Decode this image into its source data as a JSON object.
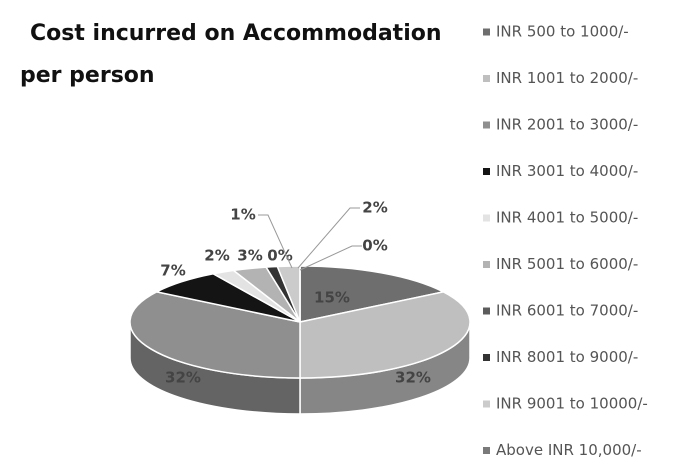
{
  "chart_data": {
    "type": "pie",
    "title": "Cost incurred on Accommodation per person",
    "categories": [
      "INR 500 to 1000/-",
      "INR 1001 to 2000/-",
      "INR 2001 to 3000/-",
      "INR 3001 to 4000/-",
      "INR 4001 to 5000/-",
      "INR 5001 to 6000/-",
      "INR 6001 to 7000/-",
      "INR 8001 to 9000/-",
      "INR 9001 to 10000/-",
      "Above INR 10,000/-"
    ],
    "values": [
      15,
      32,
      32,
      7,
      2,
      3,
      0,
      1,
      2,
      0
    ],
    "value_labels": [
      "15%",
      "32%",
      "32%",
      "7%",
      "2%",
      "3%",
      "0%",
      "1%",
      "2%",
      "0%"
    ],
    "colors": [
      "#6e6e6e",
      "#bfbfbf",
      "#8f8f8f",
      "#141414",
      "#e3e3e3",
      "#b3b3b3",
      "#5c5c5c",
      "#333333",
      "#cbcbcb",
      "#7a7a7a"
    ],
    "legend": "right"
  }
}
